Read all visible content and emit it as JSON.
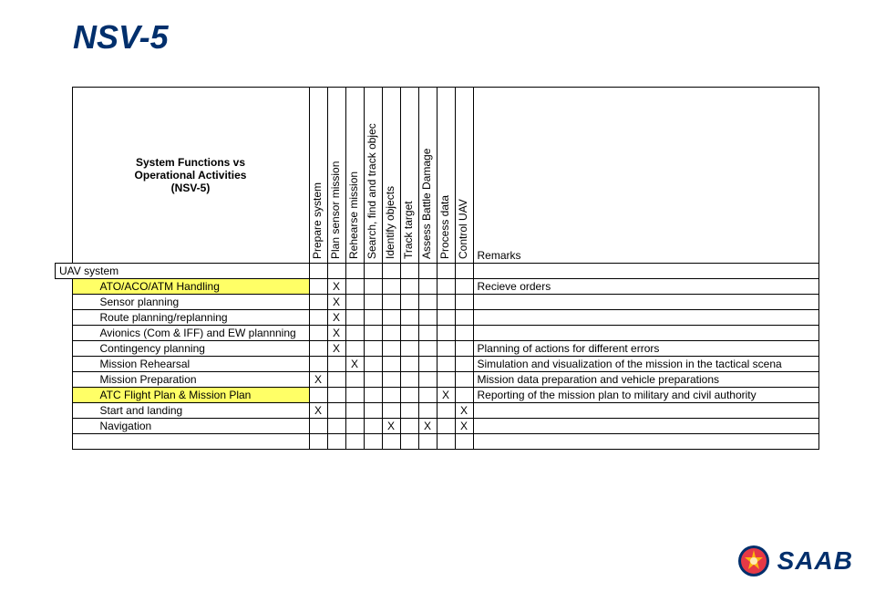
{
  "page_title": "NSV-5",
  "header_block": "System Functions vs\nOperational Activities\n(NSV-5)",
  "columns": [
    "Prepare system",
    "Plan sensor mission",
    "Rehearse mission",
    "Search, find and track objec",
    "Identify objects",
    "Track target",
    "Assess Battle Damage",
    "Process data",
    "Control UAV"
  ],
  "remarks_header": "Remarks",
  "section_row": "UAV system",
  "rows": [
    {
      "label": "ATO/ACO/ATM Handling",
      "hl": true,
      "marks": [
        "",
        "X",
        "",
        "",
        "",
        "",
        "",
        "",
        ""
      ],
      "remark": "Recieve orders"
    },
    {
      "label": "Sensor planning",
      "hl": false,
      "marks": [
        "",
        "X",
        "",
        "",
        "",
        "",
        "",
        "",
        ""
      ],
      "remark": ""
    },
    {
      "label": "Route planning/replanning",
      "hl": false,
      "marks": [
        "",
        "X",
        "",
        "",
        "",
        "",
        "",
        "",
        ""
      ],
      "remark": ""
    },
    {
      "label": "Avionics (Com & IFF) and EW plannning",
      "hl": false,
      "marks": [
        "",
        "X",
        "",
        "",
        "",
        "",
        "",
        "",
        ""
      ],
      "remark": ""
    },
    {
      "label": "Contingency planning",
      "hl": false,
      "marks": [
        "",
        "X",
        "",
        "",
        "",
        "",
        "",
        "",
        ""
      ],
      "remark": "Planning of actions for different errors"
    },
    {
      "label": "Mission Rehearsal",
      "hl": false,
      "marks": [
        "",
        "",
        "X",
        "",
        "",
        "",
        "",
        "",
        ""
      ],
      "remark": "Simulation and visualization of the mission in the tactical scena"
    },
    {
      "label": "Mission Preparation",
      "hl": false,
      "marks": [
        "X",
        "",
        "",
        "",
        "",
        "",
        "",
        "",
        ""
      ],
      "remark": "Mission data preparation and vehicle preparations"
    },
    {
      "label": "ATC Flight Plan & Mission Plan",
      "hl": true,
      "marks": [
        "",
        "",
        "",
        "",
        "",
        "",
        "",
        "X",
        ""
      ],
      "remark": "Reporting of the mission plan to military and civil authority"
    },
    {
      "label": "Start and landing",
      "hl": false,
      "marks": [
        "X",
        "",
        "",
        "",
        "",
        "",
        "",
        "",
        "X"
      ],
      "remark": ""
    },
    {
      "label": "Navigation",
      "hl": false,
      "marks": [
        "",
        "",
        "",
        "",
        "X",
        "",
        "X",
        "",
        "X"
      ],
      "remark": ""
    }
  ],
  "brand": "SAAB",
  "colors": {
    "brand": "#002f6c",
    "highlight": "#ffff66"
  }
}
